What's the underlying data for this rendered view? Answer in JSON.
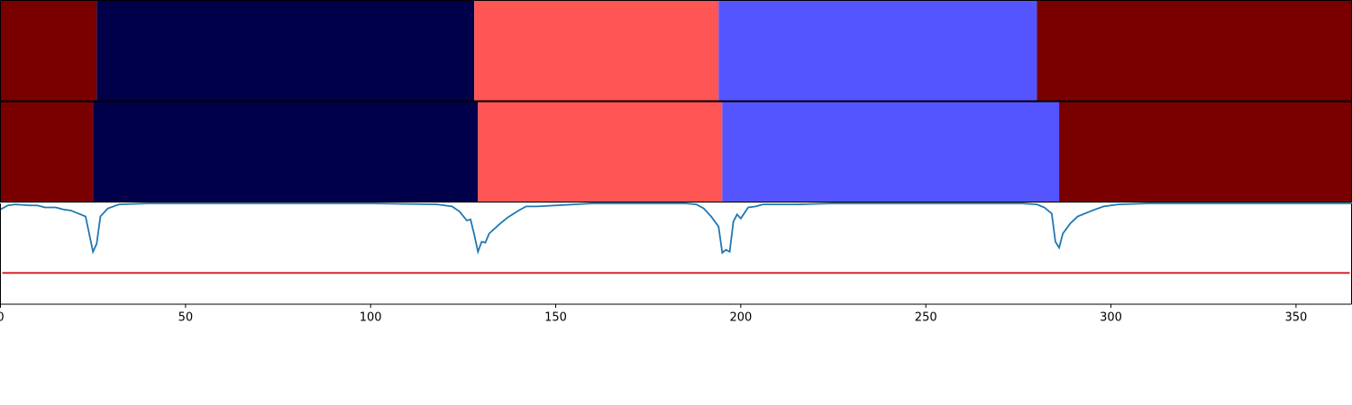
{
  "chart_data": [
    {
      "type": "segments",
      "xlim": [
        0,
        365
      ],
      "rows": [
        {
          "segments": [
            {
              "start": 0,
              "end": 26,
              "color": "#7a0000"
            },
            {
              "start": 26,
              "end": 128,
              "color": "#00004a"
            },
            {
              "start": 128,
              "end": 194,
              "color": "#ff5555"
            },
            {
              "start": 194,
              "end": 280,
              "color": "#5555ff"
            },
            {
              "start": 280,
              "end": 365,
              "color": "#7a0000"
            }
          ]
        },
        {
          "segments": [
            {
              "start": 0,
              "end": 25,
              "color": "#7a0000"
            },
            {
              "start": 25,
              "end": 129,
              "color": "#00004a"
            },
            {
              "start": 129,
              "end": 195,
              "color": "#ff5555"
            },
            {
              "start": 195,
              "end": 286,
              "color": "#5555ff"
            },
            {
              "start": 286,
              "end": 365,
              "color": "#7a0000"
            }
          ]
        }
      ]
    },
    {
      "type": "line",
      "xlim": [
        0,
        365
      ],
      "ylim": [
        0,
        1
      ],
      "color": "#1f77b4",
      "threshold": 0.31,
      "threshold_color": "#d62728",
      "xticks": [
        0,
        50,
        100,
        150,
        200,
        250,
        300,
        350
      ],
      "x": [
        0,
        2,
        4,
        8,
        10,
        12,
        15,
        17,
        19,
        21,
        23,
        25,
        26,
        27,
        29,
        32,
        40,
        100,
        118,
        122,
        124,
        126,
        127,
        128,
        129,
        130,
        131,
        132,
        135,
        137,
        140,
        142,
        145,
        150,
        160,
        185,
        188,
        190,
        192,
        194,
        195,
        196,
        197,
        198,
        199,
        200,
        202,
        204,
        206,
        215,
        225,
        276,
        280,
        282,
        284,
        285,
        286,
        287,
        289,
        291,
        293,
        295,
        298,
        302,
        310,
        365
      ],
      "values": [
        0.94,
        0.98,
        0.99,
        0.98,
        0.98,
        0.96,
        0.96,
        0.94,
        0.93,
        0.9,
        0.87,
        0.52,
        0.6,
        0.87,
        0.95,
        0.99,
        1,
        1,
        0.99,
        0.97,
        0.92,
        0.83,
        0.84,
        0.69,
        0.52,
        0.62,
        0.61,
        0.7,
        0.8,
        0.86,
        0.93,
        0.97,
        0.97,
        0.98,
        1,
        1,
        0.99,
        0.95,
        0.87,
        0.77,
        0.51,
        0.54,
        0.52,
        0.82,
        0.89,
        0.85,
        0.96,
        0.97,
        0.99,
        0.99,
        1,
        1,
        0.99,
        0.96,
        0.9,
        0.62,
        0.56,
        0.7,
        0.8,
        0.87,
        0.9,
        0.93,
        0.97,
        0.99,
        1,
        1
      ]
    }
  ]
}
